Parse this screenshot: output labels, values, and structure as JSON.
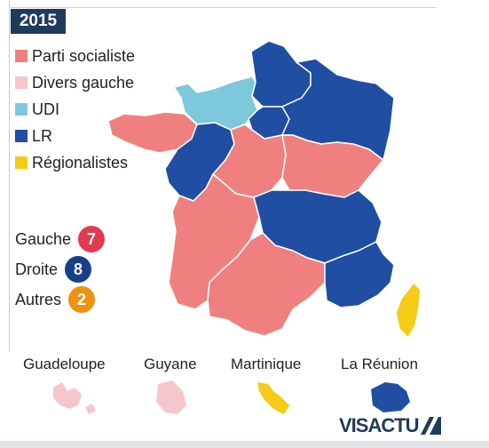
{
  "year_badge": "2015",
  "legend": [
    {
      "label": "Parti socialiste",
      "color": "#f08080"
    },
    {
      "label": "Divers gauche",
      "color": "#f7c6cc"
    },
    {
      "label": "UDI",
      "color": "#7ec8dc"
    },
    {
      "label": "LR",
      "color": "#1f4ea3"
    },
    {
      "label": "Régionalistes",
      "color": "#f5cb17"
    }
  ],
  "counts": [
    {
      "label": "Gauche",
      "value": "7",
      "color": "#e03c4e"
    },
    {
      "label": "Droite",
      "value": "8",
      "color": "#173f8a"
    },
    {
      "label": "Autres",
      "value": "2",
      "color": "#ef9210"
    }
  ],
  "territories": [
    {
      "label": "Guadeloupe"
    },
    {
      "label": "Guyane"
    },
    {
      "label": "Martinique"
    },
    {
      "label": "La Réunion"
    }
  ],
  "brand": "VISACTU"
}
